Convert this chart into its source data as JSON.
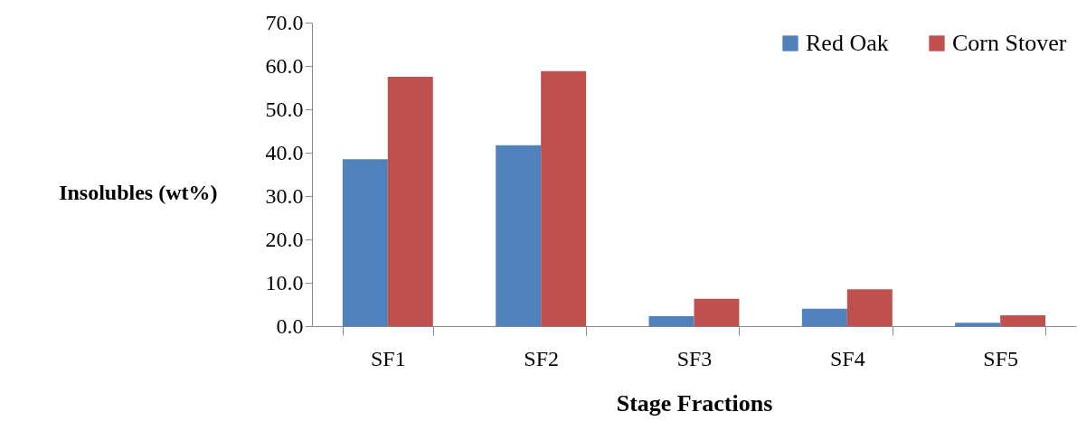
{
  "chart_data": {
    "type": "bar",
    "xlabel": "Stage Fractions",
    "ylabel": "Insolubles (wt%)",
    "categories": [
      "SF1",
      "SF2",
      "SF3",
      "SF4",
      "SF5"
    ],
    "series": [
      {
        "name": "Red Oak",
        "color": "#4f81bd",
        "values": [
          38.5,
          41.7,
          2.3,
          4.0,
          0.8
        ]
      },
      {
        "name": "Corn Stover",
        "color": "#c0504d",
        "values": [
          57.5,
          58.8,
          6.3,
          8.5,
          2.5
        ]
      }
    ],
    "ylim": [
      0,
      70
    ],
    "yticks": [
      {
        "value": 0,
        "label": "0.0"
      },
      {
        "value": 10,
        "label": "10.0"
      },
      {
        "value": 20,
        "label": "20.0"
      },
      {
        "value": 30,
        "label": "30.0"
      },
      {
        "value": 40,
        "label": "40.0"
      },
      {
        "value": 50,
        "label": "50.0"
      },
      {
        "value": 60,
        "label": "60.0"
      },
      {
        "value": 70,
        "label": "70.0"
      }
    ],
    "grid": false,
    "legend": "top right"
  }
}
